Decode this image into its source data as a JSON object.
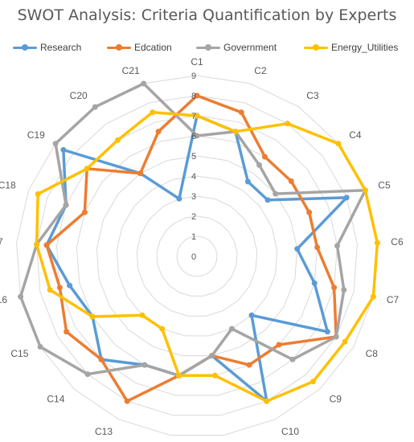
{
  "chart_data": {
    "type": "radar",
    "title": "SWOT Analysis: Criteria Quantification by Experts",
    "categories": [
      "C1",
      "C2",
      "C3",
      "C4",
      "C5",
      "C6",
      "C7",
      "C8",
      "C9",
      "C10",
      "C11",
      "C12",
      "C13",
      "C14",
      "C15",
      "C16",
      "C17",
      "C18",
      "C19",
      "C20",
      "C21"
    ],
    "rlim": [
      0,
      9
    ],
    "ticks": [
      "0",
      "1",
      "2",
      "3",
      "4",
      "5",
      "6",
      "7",
      "8",
      "9"
    ],
    "grid": true,
    "legend": "top",
    "series": [
      {
        "name": "Research",
        "color": "#5b9bd5",
        "values": [
          7,
          6.5,
          4.5,
          4.5,
          8,
          5,
          6,
          7.5,
          4,
          8,
          5,
          6,
          6,
          7,
          6,
          6.5,
          7.5,
          7,
          8.5,
          5,
          3
        ]
      },
      {
        "name": "Edcation",
        "color": "#ed7d31",
        "values": [
          8,
          7.5,
          6,
          6,
          6,
          6,
          7,
          8,
          6,
          6,
          5,
          6,
          8,
          7,
          7.5,
          7,
          7.5,
          6,
          7,
          5,
          6.5
        ]
      },
      {
        "name": "Government",
        "color": "#a5a5a5",
        "values": [
          6,
          6.5,
          5.5,
          5,
          9,
          7,
          7.5,
          8,
          7,
          4,
          5,
          6,
          6,
          8,
          9,
          9,
          8,
          7,
          9,
          9,
          9
        ]
      },
      {
        "name": "Energy_Utilities",
        "color": "#ffc000",
        "values": [
          7,
          6.5,
          8,
          9,
          9,
          9,
          9,
          8.5,
          8.5,
          8,
          6,
          6,
          4,
          4,
          6,
          7.5,
          8,
          8.5,
          7,
          7,
          7.5
        ]
      }
    ]
  }
}
